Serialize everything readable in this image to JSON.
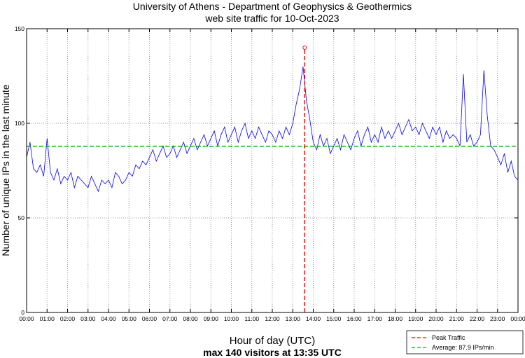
{
  "chart_data": {
    "type": "line",
    "title": "University of Athens - Department of Geophysics & Geothermics",
    "subtitle": "web site traffic for 10-Oct-2023",
    "xlabel": "Hour of day (UTC)",
    "xlabel_note": "max 140 visitors at 13:35 UTC",
    "ylabel": "Number of unique IPs in the last minute",
    "ylim": [
      0,
      150
    ],
    "yticks": [
      0,
      50,
      100,
      150
    ],
    "xlim_minutes": [
      0,
      1440
    ],
    "xtick_labels": [
      "00:00",
      "01:00",
      "02:00",
      "03:00",
      "04:00",
      "05:00",
      "06:00",
      "07:00",
      "08:00",
      "09:00",
      "10:00",
      "11:00",
      "12:00",
      "13:00",
      "14:00",
      "15:00",
      "16:00",
      "17:00",
      "18:00",
      "19:00",
      "20:00",
      "21:00",
      "22:00",
      "23:00",
      "00:00"
    ],
    "grid": true,
    "sample_interval_minutes": 10,
    "series": [
      {
        "name": "Traffic",
        "color": "#0000ff",
        "values": [
          82,
          90,
          76,
          74,
          78,
          72,
          92,
          74,
          70,
          76,
          68,
          72,
          70,
          74,
          66,
          72,
          70,
          68,
          66,
          72,
          68,
          64,
          70,
          68,
          70,
          66,
          74,
          72,
          68,
          70,
          74,
          72,
          78,
          76,
          80,
          78,
          82,
          86,
          80,
          84,
          88,
          82,
          84,
          88,
          82,
          86,
          90,
          84,
          88,
          92,
          86,
          90,
          94,
          88,
          92,
          96,
          88,
          94,
          98,
          90,
          94,
          98,
          90,
          96,
          100,
          92,
          96,
          92,
          98,
          94,
          90,
          96,
          94,
          90,
          96,
          92,
          98,
          94,
          100,
          110,
          118,
          130,
          112,
          102,
          90,
          86,
          94,
          88,
          92,
          84,
          88,
          92,
          86,
          94,
          90,
          86,
          92,
          96,
          88,
          94,
          98,
          90,
          94,
          90,
          98,
          92,
          96,
          92,
          96,
          100,
          94,
          98,
          102,
          96,
          98,
          94,
          100,
          96,
          92,
          98,
          94,
          98,
          90,
          96,
          92,
          94,
          92,
          88,
          126,
          90,
          94,
          88,
          90,
          94,
          128,
          104,
          88,
          86,
          82,
          78,
          84,
          74,
          80,
          72,
          70
        ]
      }
    ],
    "peak": {
      "minute": 815,
      "value": 140,
      "color": "#ff0000"
    },
    "average": {
      "value": 87.9,
      "color": "#00aa00"
    },
    "legend": {
      "placement": "bottom-right",
      "entries": [
        "Peak Traffic",
        "Average: 87.9 IPs/min"
      ]
    }
  }
}
